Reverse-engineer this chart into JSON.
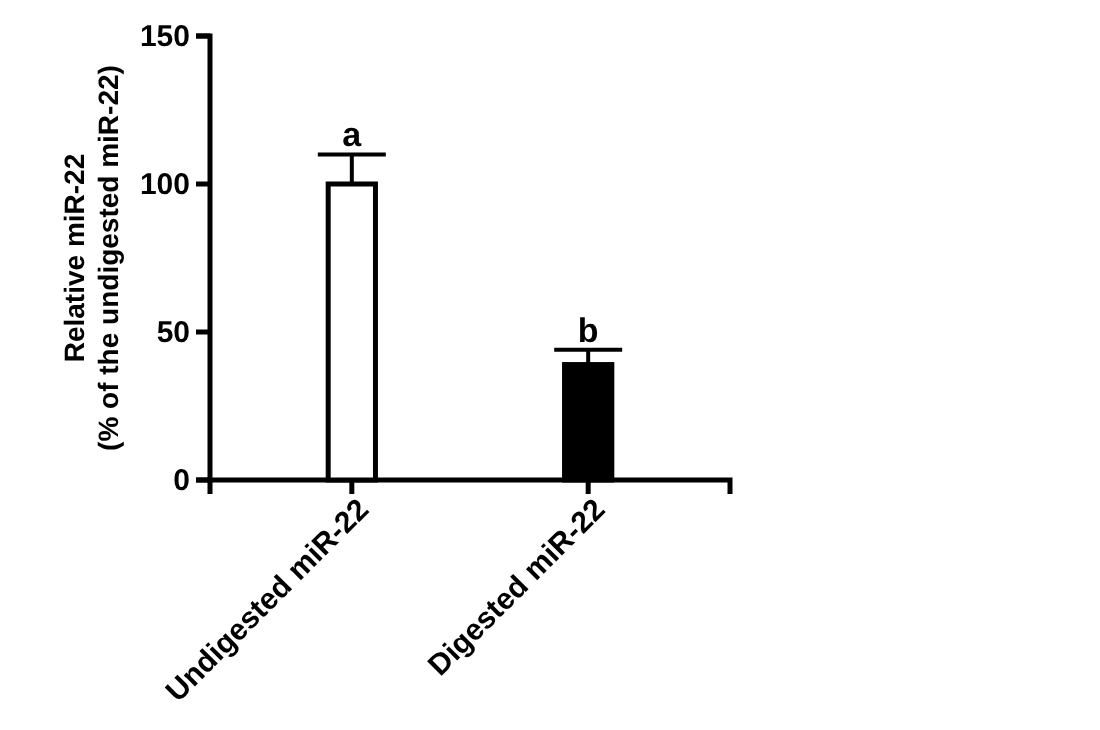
{
  "chart_data": {
    "type": "bar",
    "ylabel": "Relative miR-22\n(% of the undigested miR-22)",
    "categories": [
      "Undigested miR-22",
      "Digested miR-22"
    ],
    "values": [
      100,
      39
    ],
    "colors": [
      "#ffffff",
      "#000000"
    ],
    "errors": [
      [
        100,
        110
      ],
      [
        39,
        44
      ]
    ],
    "ylim": [
      0,
      150
    ],
    "yticks": [
      0,
      50,
      100,
      150
    ],
    "annotations": [
      {
        "text": "a",
        "x": "Undigested miR-22",
        "y": 110
      },
      {
        "text": "b",
        "x": "Digested miR-22",
        "y": 44
      }
    ]
  }
}
